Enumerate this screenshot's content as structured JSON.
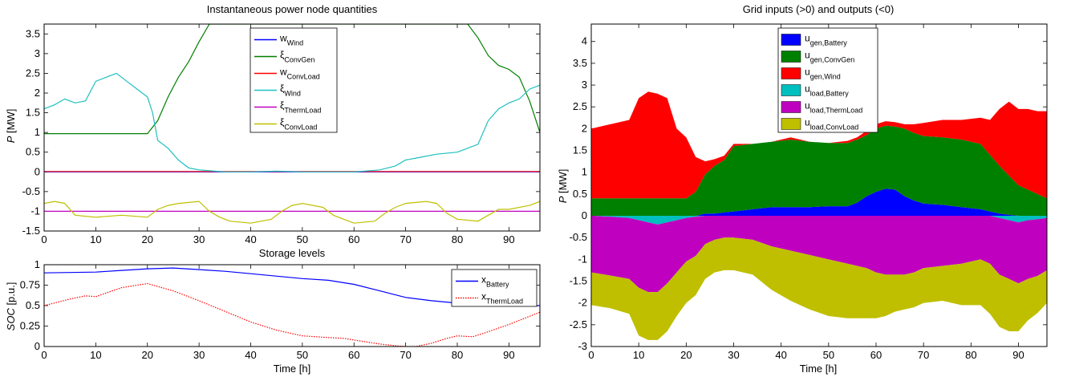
{
  "chart_data": [
    {
      "type": "line",
      "title": "Instantaneous power node quantities",
      "xlabel": "",
      "ylabel": "P [MW]",
      "xlim": [
        0,
        96
      ],
      "ylim": [
        -1.5,
        3.75
      ],
      "xticks": [
        0,
        10,
        20,
        30,
        40,
        50,
        60,
        70,
        80,
        90
      ],
      "yticks": [
        -1.5,
        -1,
        -0.5,
        0,
        0.5,
        1,
        1.5,
        2,
        2.5,
        3,
        3.5
      ],
      "ytick_labels": [
        "-1.5",
        "-1",
        "-0.5",
        "0",
        "0.5",
        "1",
        "1.5",
        "2",
        "2.5",
        "3",
        "3.5"
      ],
      "legend_position": "top-center",
      "series": [
        {
          "name": "w",
          "sub": "Wind",
          "color": "#0000ff",
          "x": [
            0,
            96
          ],
          "y": [
            0,
            0
          ]
        },
        {
          "name": "ξ",
          "sub": "ConvGen",
          "color": "#008000",
          "x": [
            0,
            20,
            22,
            24,
            26,
            28,
            30,
            32,
            82,
            84,
            86,
            88,
            90,
            92,
            94,
            96
          ],
          "y": [
            0.97,
            0.97,
            1.3,
            1.9,
            2.4,
            2.8,
            3.3,
            3.75,
            3.75,
            3.4,
            2.95,
            2.7,
            2.6,
            2.4,
            1.8,
            1.0
          ]
        },
        {
          "name": "w",
          "sub": "ConvLoad",
          "color": "#ff0000",
          "x": [
            0,
            96
          ],
          "y": [
            0.01,
            0.01
          ]
        },
        {
          "name": "ξ",
          "sub": "Wind",
          "color": "#20c0c0",
          "x": [
            0,
            2,
            4,
            6,
            8,
            10,
            12,
            14,
            16,
            18,
            20,
            21,
            22,
            24,
            26,
            28,
            30,
            35,
            40,
            45,
            50,
            55,
            60,
            65,
            68,
            70,
            72,
            74,
            76,
            80,
            82,
            84,
            86,
            88,
            90,
            92,
            94,
            96
          ],
          "y": [
            1.6,
            1.7,
            1.85,
            1.75,
            1.8,
            2.3,
            2.4,
            2.5,
            2.3,
            2.1,
            1.9,
            1.5,
            0.8,
            0.6,
            0.3,
            0.1,
            0.05,
            0.0,
            0.0,
            0.02,
            0.0,
            0.0,
            0.0,
            0.05,
            0.15,
            0.3,
            0.35,
            0.4,
            0.45,
            0.5,
            0.6,
            0.7,
            1.3,
            1.6,
            1.75,
            1.85,
            2.1,
            2.2
          ]
        },
        {
          "name": "ξ",
          "sub": "ThermLoad",
          "color": "#c000c0",
          "x": [
            0,
            96
          ],
          "y": [
            -1.0,
            -1.0
          ]
        },
        {
          "name": "ξ",
          "sub": "ConvLoad",
          "color": "#bfbf00",
          "x": [
            0,
            2,
            4,
            6,
            10,
            15,
            20,
            22,
            24,
            26,
            30,
            32,
            34,
            36,
            40,
            44,
            46,
            48,
            50,
            54,
            56,
            58,
            60,
            64,
            66,
            68,
            70,
            74,
            76,
            78,
            80,
            84,
            86,
            88,
            90,
            94,
            96
          ],
          "y": [
            -0.8,
            -0.75,
            -0.8,
            -1.1,
            -1.15,
            -1.1,
            -1.15,
            -0.95,
            -0.85,
            -0.8,
            -0.75,
            -1.0,
            -1.15,
            -1.25,
            -1.3,
            -1.2,
            -1.0,
            -0.85,
            -0.8,
            -0.9,
            -1.1,
            -1.2,
            -1.3,
            -1.25,
            -1.05,
            -0.9,
            -0.8,
            -0.75,
            -0.8,
            -1.05,
            -1.2,
            -1.25,
            -1.1,
            -0.95,
            -0.95,
            -0.85,
            -0.75
          ]
        }
      ]
    },
    {
      "type": "line",
      "title": "Storage levels",
      "xlabel": "Time [h]",
      "ylabel": "SOC [p.u.]",
      "xlim": [
        0,
        96
      ],
      "ylim": [
        0,
        1
      ],
      "xticks": [
        0,
        10,
        20,
        30,
        40,
        50,
        60,
        70,
        80,
        90
      ],
      "yticks": [
        0,
        0.25,
        0.5,
        0.75,
        1
      ],
      "ytick_labels": [
        "0",
        "0.25",
        "0.5",
        "0.75",
        "1"
      ],
      "legend_position": "top-right",
      "series": [
        {
          "name": "x",
          "sub": "Battery",
          "color": "#0000ff",
          "dash": "",
          "x": [
            0,
            10,
            15,
            20,
            25,
            30,
            35,
            40,
            50,
            55,
            60,
            65,
            70,
            75,
            80,
            85,
            90,
            96
          ],
          "y": [
            0.9,
            0.91,
            0.93,
            0.95,
            0.96,
            0.94,
            0.92,
            0.89,
            0.83,
            0.81,
            0.76,
            0.68,
            0.6,
            0.56,
            0.53,
            0.51,
            0.5,
            0.5
          ]
        },
        {
          "name": "x",
          "sub": "ThermLoad",
          "color": "#ff0000",
          "dash": "1.5,1.5",
          "x": [
            0,
            5,
            8,
            10,
            15,
            20,
            25,
            30,
            35,
            40,
            45,
            50,
            55,
            58,
            62,
            65,
            68,
            70,
            72,
            75,
            78,
            80,
            83,
            85,
            90,
            96
          ],
          "y": [
            0.5,
            0.58,
            0.62,
            0.61,
            0.72,
            0.77,
            0.68,
            0.56,
            0.43,
            0.3,
            0.2,
            0.13,
            0.11,
            0.1,
            0.06,
            0.03,
            0.01,
            0.0,
            0.0,
            0.04,
            0.1,
            0.13,
            0.12,
            0.16,
            0.27,
            0.42
          ]
        }
      ]
    },
    {
      "type": "area",
      "title": "Grid inputs (>0) and outputs (<0)",
      "xlabel": "Time [h]",
      "ylabel": "P [MW]",
      "xlim": [
        0,
        96
      ],
      "ylim": [
        -3,
        4.4
      ],
      "xticks": [
        0,
        10,
        20,
        30,
        40,
        50,
        60,
        70,
        80,
        90
      ],
      "yticks": [
        -3,
        -2.5,
        -2,
        -1.5,
        -1,
        -0.5,
        0,
        0.5,
        1,
        1.5,
        2,
        2.5,
        3,
        3.5,
        4
      ],
      "ytick_labels": [
        "-3",
        "-2.5",
        "-2",
        "-1.5",
        "-1",
        "-0.5",
        "0",
        "0.5",
        "1",
        "1.5",
        "2",
        "2.5",
        "3",
        "3.5",
        "4"
      ],
      "legend_position": "top-center",
      "x": [
        0,
        4,
        8,
        10,
        12,
        14,
        16,
        18,
        20,
        22,
        24,
        26,
        28,
        30,
        34,
        38,
        42,
        46,
        50,
        54,
        56,
        58,
        60,
        62,
        64,
        66,
        68,
        70,
        74,
        78,
        82,
        84,
        86,
        88,
        90,
        92,
        94,
        96
      ],
      "series": [
        {
          "name": "u",
          "sub": "gen,Battery",
          "color": "#0000ff",
          "y": [
            0,
            0,
            0,
            0,
            0,
            0,
            0,
            0,
            0,
            0,
            0.05,
            0.05,
            0.08,
            0.1,
            0.15,
            0.2,
            0.2,
            0.2,
            0.22,
            0.22,
            0.3,
            0.45,
            0.55,
            0.62,
            0.6,
            0.45,
            0.35,
            0.28,
            0.25,
            0.2,
            0.15,
            0.1,
            0.05,
            0.02,
            0,
            0,
            0,
            0
          ]
        },
        {
          "name": "u",
          "sub": "gen,ConvGen",
          "color": "#008000",
          "y": [
            0.4,
            0.4,
            0.4,
            0.4,
            0.4,
            0.4,
            0.4,
            0.4,
            0.4,
            0.55,
            0.9,
            1.1,
            1.2,
            1.5,
            1.5,
            1.5,
            1.55,
            1.5,
            1.45,
            1.45,
            1.45,
            1.4,
            1.45,
            1.45,
            1.45,
            1.55,
            1.55,
            1.55,
            1.55,
            1.55,
            1.5,
            1.3,
            1.1,
            0.9,
            0.7,
            0.6,
            0.5,
            0.4
          ]
        },
        {
          "name": "u",
          "sub": "gen,Wind",
          "color": "#ff0000",
          "y": [
            1.6,
            1.7,
            1.8,
            2.3,
            2.45,
            2.4,
            2.3,
            1.6,
            1.4,
            0.8,
            0.3,
            0.15,
            0.1,
            0.05,
            0.0,
            0.0,
            0.05,
            0.0,
            0.0,
            0.05,
            0.05,
            0.1,
            0.1,
            0.1,
            0.1,
            0.1,
            0.2,
            0.3,
            0.4,
            0.45,
            0.6,
            0.8,
            1.3,
            1.7,
            1.75,
            1.85,
            1.9,
            2.0
          ]
        },
        {
          "name": "u",
          "sub": "load,Battery",
          "color": "#00bfbf",
          "y": [
            0,
            -0.02,
            -0.05,
            -0.1,
            -0.15,
            -0.2,
            -0.15,
            -0.1,
            -0.05,
            -0.02,
            0,
            0,
            0,
            0,
            0,
            0,
            0,
            0,
            0,
            0,
            0,
            0,
            0,
            0,
            0,
            0,
            0,
            0,
            0,
            0,
            0,
            0,
            -0.05,
            -0.1,
            -0.15,
            -0.1,
            -0.08,
            -0.05
          ]
        },
        {
          "name": "u",
          "sub": "load,ThermLoad",
          "color": "#bf00bf",
          "y": [
            -1.3,
            -1.35,
            -1.4,
            -1.55,
            -1.6,
            -1.55,
            -1.4,
            -1.2,
            -1.0,
            -0.9,
            -0.65,
            -0.55,
            -0.5,
            -0.5,
            -0.55,
            -0.7,
            -0.8,
            -0.9,
            -1.0,
            -1.1,
            -1.15,
            -1.2,
            -1.3,
            -1.35,
            -1.35,
            -1.35,
            -1.3,
            -1.2,
            -1.15,
            -1.1,
            -1.0,
            -1.1,
            -1.3,
            -1.35,
            -1.4,
            -1.35,
            -1.3,
            -1.2
          ]
        },
        {
          "name": "u",
          "sub": "load,ConvLoad",
          "color": "#bfbf00",
          "y": [
            -0.75,
            -0.75,
            -0.8,
            -1.1,
            -1.1,
            -1.1,
            -1.1,
            -1.0,
            -0.95,
            -0.9,
            -0.8,
            -0.75,
            -0.75,
            -0.75,
            -0.8,
            -1.0,
            -1.15,
            -1.25,
            -1.3,
            -1.25,
            -1.2,
            -1.15,
            -1.05,
            -0.95,
            -0.85,
            -0.8,
            -0.8,
            -0.8,
            -0.8,
            -0.95,
            -1.05,
            -1.15,
            -1.2,
            -1.2,
            -1.1,
            -0.95,
            -0.85,
            -0.75
          ]
        }
      ]
    }
  ]
}
